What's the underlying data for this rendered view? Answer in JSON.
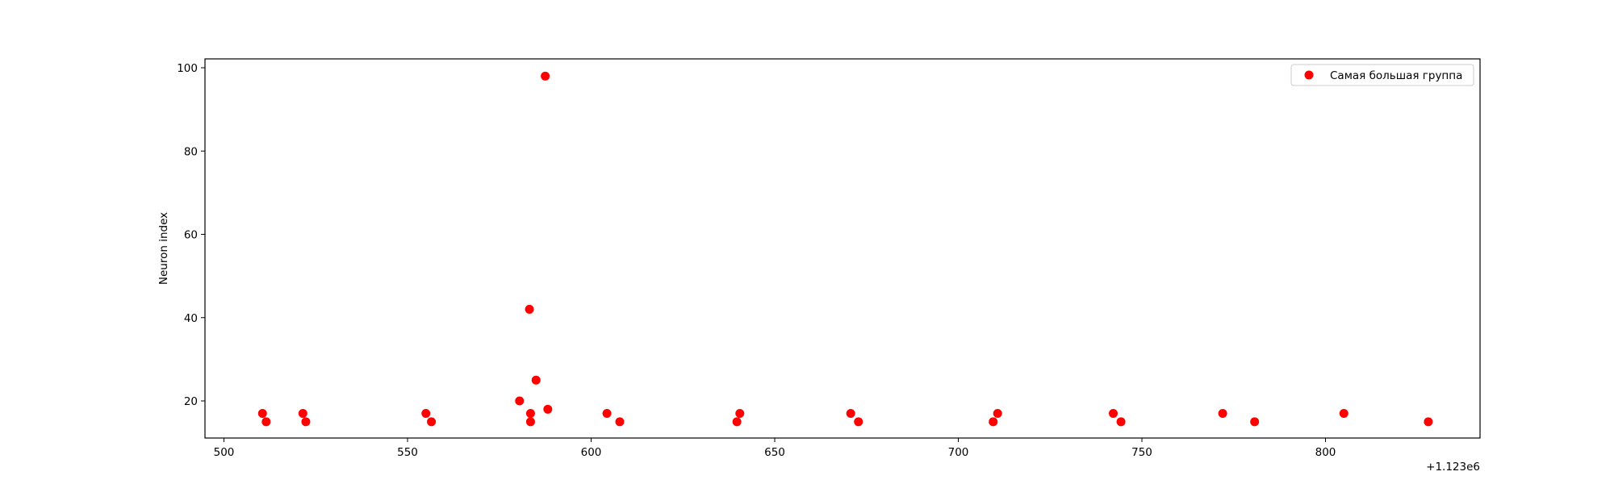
{
  "chart_data": {
    "type": "scatter",
    "title": "",
    "xlabel": "",
    "ylabel": "Neuron index",
    "x_offset_label": "+1.123e6",
    "xlim": [
      495,
      855
    ],
    "ylim": [
      11,
      102
    ],
    "xticks": [
      500,
      550,
      600,
      650,
      700,
      750,
      800
    ],
    "yticks": [
      20,
      40,
      60,
      80,
      100
    ],
    "grid": false,
    "legend_position": "top-right",
    "series": [
      {
        "name": "Самая большая группа",
        "color": "#ff0000",
        "points": [
          {
            "x": 510.5,
            "y": 17
          },
          {
            "x": 511.5,
            "y": 15
          },
          {
            "x": 521.5,
            "y": 17
          },
          {
            "x": 522.3,
            "y": 15
          },
          {
            "x": 555.0,
            "y": 17
          },
          {
            "x": 556.5,
            "y": 15
          },
          {
            "x": 580.5,
            "y": 20
          },
          {
            "x": 583.2,
            "y": 42
          },
          {
            "x": 583.5,
            "y": 17
          },
          {
            "x": 583.5,
            "y": 15
          },
          {
            "x": 585.0,
            "y": 25
          },
          {
            "x": 587.5,
            "y": 98
          },
          {
            "x": 588.2,
            "y": 18
          },
          {
            "x": 604.3,
            "y": 17
          },
          {
            "x": 607.8,
            "y": 15
          },
          {
            "x": 639.7,
            "y": 15
          },
          {
            "x": 640.5,
            "y": 17
          },
          {
            "x": 670.7,
            "y": 17
          },
          {
            "x": 672.8,
            "y": 15
          },
          {
            "x": 709.5,
            "y": 15
          },
          {
            "x": 710.7,
            "y": 17
          },
          {
            "x": 742.2,
            "y": 17
          },
          {
            "x": 744.3,
            "y": 15
          },
          {
            "x": 772.0,
            "y": 17
          },
          {
            "x": 780.7,
            "y": 15
          },
          {
            "x": 805.0,
            "y": 17
          },
          {
            "x": 828.0,
            "y": 15
          }
        ]
      }
    ]
  }
}
